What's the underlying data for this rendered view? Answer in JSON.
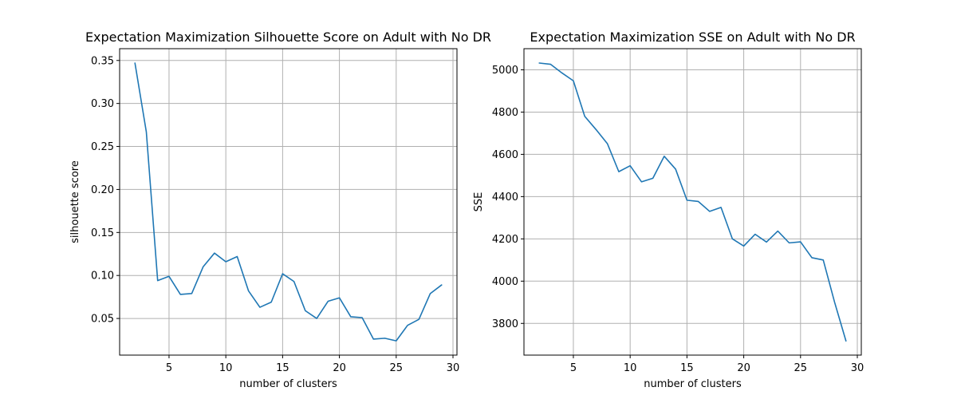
{
  "colors": {
    "series": "#1f77b4",
    "grid": "#b0b0b0",
    "axis": "#000000",
    "background": "#ffffff"
  },
  "chart_data": [
    {
      "type": "line",
      "title": "Expectation Maximization Silhouette Score on Adult with No DR",
      "xlabel": "number of clusters",
      "ylabel": "silhouette score",
      "xlim": [
        0.65,
        30.35
      ],
      "ylim": [
        0.0074,
        0.3637
      ],
      "xticks": [
        5,
        10,
        15,
        20,
        25,
        30
      ],
      "xtick_labels": [
        "5",
        "10",
        "15",
        "20",
        "25",
        "30"
      ],
      "yticks": [
        0.05,
        0.1,
        0.15,
        0.2,
        0.25,
        0.3,
        0.35
      ],
      "ytick_labels": [
        "0.05",
        "0.10",
        "0.15",
        "0.20",
        "0.25",
        "0.30",
        "0.35"
      ],
      "grid": true,
      "series": [
        {
          "x": [
            2,
            3,
            4,
            5,
            6,
            7,
            8,
            9,
            10,
            11,
            12,
            13,
            14,
            15,
            16,
            17,
            18,
            19,
            20,
            21,
            22,
            23,
            24,
            25,
            26,
            27,
            28,
            29
          ],
          "values": [
            0.347,
            0.267,
            0.094,
            0.099,
            0.078,
            0.079,
            0.11,
            0.126,
            0.116,
            0.122,
            0.082,
            0.063,
            0.069,
            0.102,
            0.093,
            0.059,
            0.05,
            0.07,
            0.074,
            0.052,
            0.051,
            0.026,
            0.027,
            0.024,
            0.042,
            0.049,
            0.079,
            0.089
          ]
        }
      ]
    },
    {
      "type": "line",
      "title": "Expectation Maximization SSE on Adult with No DR",
      "xlabel": "number of clusters",
      "ylabel": "SSE",
      "xlim": [
        0.65,
        30.35
      ],
      "ylim": [
        3650,
        5100
      ],
      "xticks": [
        5,
        10,
        15,
        20,
        25,
        30
      ],
      "xtick_labels": [
        "5",
        "10",
        "15",
        "20",
        "25",
        "30"
      ],
      "yticks": [
        3800,
        4000,
        4200,
        4400,
        4600,
        4800,
        5000
      ],
      "ytick_labels": [
        "3800",
        "4000",
        "4200",
        "4400",
        "4600",
        "4800",
        "5000"
      ],
      "grid": true,
      "series": [
        {
          "x": [
            2,
            3,
            4,
            5,
            6,
            7,
            8,
            9,
            10,
            11,
            12,
            13,
            14,
            15,
            16,
            17,
            18,
            19,
            20,
            21,
            22,
            23,
            24,
            25,
            26,
            27,
            28,
            29
          ],
          "values": [
            5032,
            5026,
            4985,
            4948,
            4780,
            4717,
            4650,
            4518,
            4546,
            4470,
            4487,
            4591,
            4530,
            4383,
            4377,
            4330,
            4349,
            4200,
            4166,
            4222,
            4185,
            4237,
            4181,
            4186,
            4111,
            4100,
            3900,
            3717
          ]
        }
      ]
    }
  ]
}
